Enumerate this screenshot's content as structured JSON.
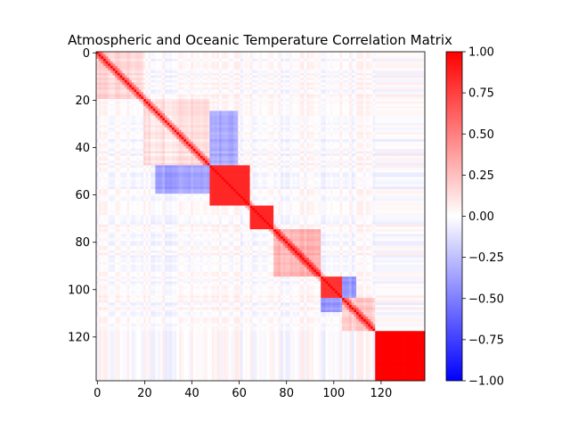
{
  "chart_data": {
    "type": "heatmap",
    "title": "Atmospheric and Oceanic Temperature Correlation Matrix",
    "n": 139,
    "x_ticks": [
      0,
      20,
      40,
      60,
      80,
      100,
      120
    ],
    "y_ticks": [
      0,
      20,
      40,
      60,
      80,
      100,
      120
    ],
    "colorbar": {
      "vmin": -1.0,
      "vmax": 1.0,
      "ticks": [
        -1.0,
        -0.75,
        -0.5,
        -0.25,
        0.0,
        0.25,
        0.5,
        0.75,
        1.0
      ],
      "tick_labels": [
        "−1.00",
        "−0.75",
        "−0.50",
        "−0.25",
        "0.00",
        "0.25",
        "0.50",
        "0.75",
        "1.00"
      ],
      "colors": {
        "low": "#0000ff",
        "mid": "#ffffff",
        "high": "#ff0000"
      },
      "colormap": "bwr"
    },
    "diagonal": 1.0,
    "blocks": [
      {
        "range": [
          0,
          20
        ],
        "value": 0.15
      },
      {
        "range": [
          20,
          48
        ],
        "value": 0.12
      },
      {
        "range": [
          48,
          65
        ],
        "value": 0.85
      },
      {
        "range": [
          65,
          75
        ],
        "value": 0.85
      },
      {
        "range": [
          75,
          95
        ],
        "value": 0.3
      },
      {
        "range": [
          95,
          104
        ],
        "value": 0.8
      },
      {
        "range": [
          104,
          118
        ],
        "value": 0.2
      },
      {
        "range": [
          118,
          139
        ],
        "value": 1.0
      }
    ],
    "negative_blocks": [
      {
        "rows": [
          25,
          48
        ],
        "cols": [
          30,
          60
        ],
        "value": -0.35
      },
      {
        "rows": [
          30,
          60
        ],
        "cols": [
          25,
          48
        ],
        "value": -0.35
      },
      {
        "rows": [
          95,
          104
        ],
        "cols": [
          104,
          110
        ],
        "value": -0.4
      },
      {
        "rows": [
          104,
          110
        ],
        "cols": [
          95,
          104
        ],
        "value": -0.4
      }
    ]
  }
}
